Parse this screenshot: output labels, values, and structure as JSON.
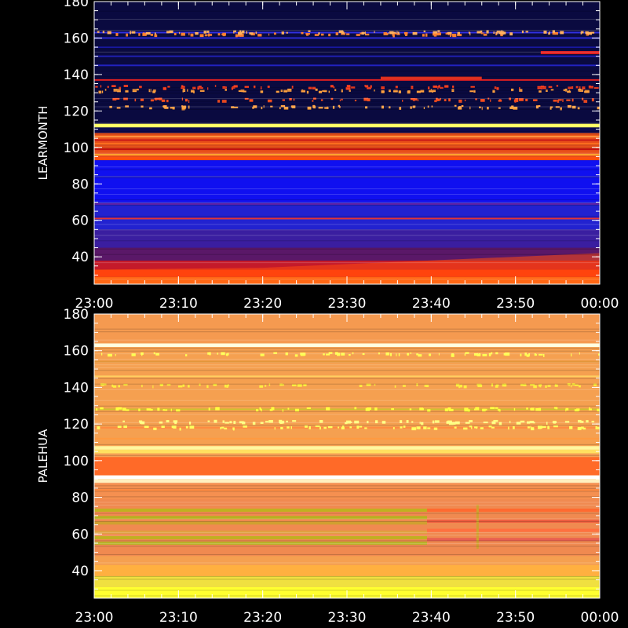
{
  "chart_data": [
    {
      "type": "heatmap",
      "station": "LEARMONTH",
      "ylabel": "LEARMONTH",
      "x_tick_labels": [
        "23:00",
        "23:10",
        "23:20",
        "23:30",
        "23:40",
        "23:50",
        "00:00"
      ],
      "x_range_minutes": [
        0,
        60
      ],
      "y_ticks": [
        40,
        60,
        80,
        100,
        120,
        140,
        160,
        180
      ],
      "ylim": [
        25,
        180
      ],
      "y_minor_step": 5,
      "background_color": "#0a0a4a",
      "bands": [
        {
          "from": 25,
          "to": 29,
          "color": "#ff8a1a"
        },
        {
          "from": 29,
          "to": 33,
          "color": "#ff3a0a"
        },
        {
          "from": 33,
          "to": 38,
          "color": "#c41a2a"
        },
        {
          "from": 38,
          "to": 45,
          "color": "#5a1868"
        },
        {
          "from": 45,
          "to": 55,
          "color": "#3a1ea0"
        },
        {
          "from": 55,
          "to": 70,
          "color": "#2222d0"
        },
        {
          "from": 70,
          "to": 93,
          "color": "#1010f0"
        },
        {
          "from": 93,
          "to": 95,
          "color": "#ff5010"
        },
        {
          "from": 95,
          "to": 108,
          "color": "#e8501a"
        },
        {
          "from": 108,
          "to": 111,
          "color": "#0a0a50"
        },
        {
          "from": 111,
          "to": 113,
          "color": "#ffff60"
        },
        {
          "from": 113,
          "to": 180,
          "color": "#0a0a40"
        }
      ],
      "lines": [
        {
          "freq": 96,
          "color": "#ffaa30"
        },
        {
          "freq": 99,
          "color": "#c01010"
        },
        {
          "freq": 102,
          "color": "#ff7020"
        },
        {
          "freq": 104,
          "color": "#c81818"
        },
        {
          "freq": 106,
          "color": "#ff8a30"
        },
        {
          "freq": 61,
          "color": "#e0201a"
        },
        {
          "freq": 69,
          "color": "#6020a0"
        },
        {
          "freq": 84,
          "color": "#3030d0"
        },
        {
          "freq": 137,
          "color": "#e02020"
        },
        {
          "freq": 145,
          "color": "#2222c0"
        },
        {
          "freq": 150,
          "color": "#2020b0"
        },
        {
          "freq": 155,
          "color": "#1818a0"
        },
        {
          "freq": 160,
          "color": "#2a2ad0"
        },
        {
          "freq": 163,
          "color": "#3030e0"
        }
      ],
      "bursty_rows": [
        {
          "freq": 162,
          "color": "#ff8030"
        },
        {
          "freq": 163,
          "color": "#ffb060"
        },
        {
          "freq": 133,
          "color": "#ff4020"
        },
        {
          "freq": 131,
          "color": "#ffa040"
        },
        {
          "freq": 126,
          "color": "#ff5020"
        },
        {
          "freq": 122,
          "color": "#ffa040"
        }
      ],
      "segments": [
        {
          "freq": 152,
          "start_min": 53,
          "end_min": 60,
          "color": "#e02020"
        },
        {
          "freq": 138,
          "start_min": 34,
          "end_min": 46,
          "color": "#e03020"
        }
      ],
      "ramp": {
        "freq_start": 33,
        "freq_end": 42,
        "color": "#ff4a10"
      }
    },
    {
      "type": "heatmap",
      "station": "PALEHUA",
      "ylabel": "PALEHUA",
      "x_tick_labels": [
        "23:00",
        "23:10",
        "23:20",
        "23:30",
        "23:40",
        "23:50",
        "00:00"
      ],
      "x_range_minutes": [
        0,
        60
      ],
      "y_ticks": [
        40,
        60,
        80,
        100,
        120,
        140,
        160,
        180
      ],
      "ylim": [
        25,
        180
      ],
      "y_minor_step": 5,
      "background_color": "#f59a4a",
      "bands": [
        {
          "from": 25,
          "to": 31,
          "color": "#ffff30"
        },
        {
          "from": 31,
          "to": 37,
          "color": "#f0e040"
        },
        {
          "from": 37,
          "to": 43,
          "color": "#ffb040"
        },
        {
          "from": 43,
          "to": 48,
          "color": "#f5a050"
        },
        {
          "from": 48,
          "to": 79,
          "color": "#f08a50"
        },
        {
          "from": 79,
          "to": 88,
          "color": "#f59050"
        },
        {
          "from": 88,
          "to": 90,
          "color": "#fff0c0"
        },
        {
          "from": 90,
          "to": 92,
          "color": "#ffffff"
        },
        {
          "from": 92,
          "to": 102,
          "color": "#ff6a28"
        },
        {
          "from": 102,
          "to": 104,
          "color": "#f5a055"
        },
        {
          "from": 104,
          "to": 106,
          "color": "#ffe060"
        },
        {
          "from": 106,
          "to": 108,
          "color": "#fff7a0"
        },
        {
          "from": 108,
          "to": 162,
          "color": "#f5a050"
        },
        {
          "from": 162,
          "to": 164,
          "color": "#ffffe0"
        },
        {
          "from": 164,
          "to": 180,
          "color": "#f59a50"
        }
      ],
      "lines": [
        {
          "freq": 154,
          "color": "#e09030"
        },
        {
          "freq": 146,
          "color": "#ffd060"
        },
        {
          "freq": 128,
          "color": "#d0c030"
        },
        {
          "freq": 118,
          "color": "#ff8a40"
        },
        {
          "freq": 112,
          "color": "#ff9a40"
        },
        {
          "freq": 84,
          "color": "#ff8a40"
        }
      ],
      "bursty_rows": [
        {
          "freq": 158,
          "color": "#ffff50"
        },
        {
          "freq": 128,
          "color": "#ffff40"
        },
        {
          "freq": 121,
          "color": "#ffff80"
        },
        {
          "freq": 118,
          "color": "#ffff60"
        },
        {
          "freq": 141,
          "color": "#ffee40"
        }
      ],
      "segments": [
        {
          "freq": 73,
          "start_min": 0,
          "end_min": 39.5,
          "color": "#c0b020"
        },
        {
          "freq": 69,
          "start_min": 0,
          "end_min": 39.5,
          "color": "#b8b020"
        },
        {
          "freq": 66,
          "start_min": 0,
          "end_min": 39.5,
          "color": "#d0a030"
        },
        {
          "freq": 61,
          "start_min": 0,
          "end_min": 39.5,
          "color": "#e0a040"
        },
        {
          "freq": 58,
          "start_min": 0,
          "end_min": 39.5,
          "color": "#c0b020"
        },
        {
          "freq": 55,
          "start_min": 0,
          "end_min": 39.5,
          "color": "#b8b028"
        },
        {
          "freq": 73,
          "start_min": 39.5,
          "end_min": 60,
          "color": "#ff6a30"
        },
        {
          "freq": 67,
          "start_min": 39.5,
          "end_min": 60,
          "color": "#f06040"
        },
        {
          "freq": 62,
          "start_min": 39.5,
          "end_min": 60,
          "color": "#ff7040"
        },
        {
          "freq": 57,
          "start_min": 39.5,
          "end_min": 60,
          "color": "#e86050"
        }
      ],
      "spike": {
        "minute": 45.5,
        "freq_start": 52,
        "freq_end": 76,
        "color": "#d0a030"
      }
    }
  ]
}
